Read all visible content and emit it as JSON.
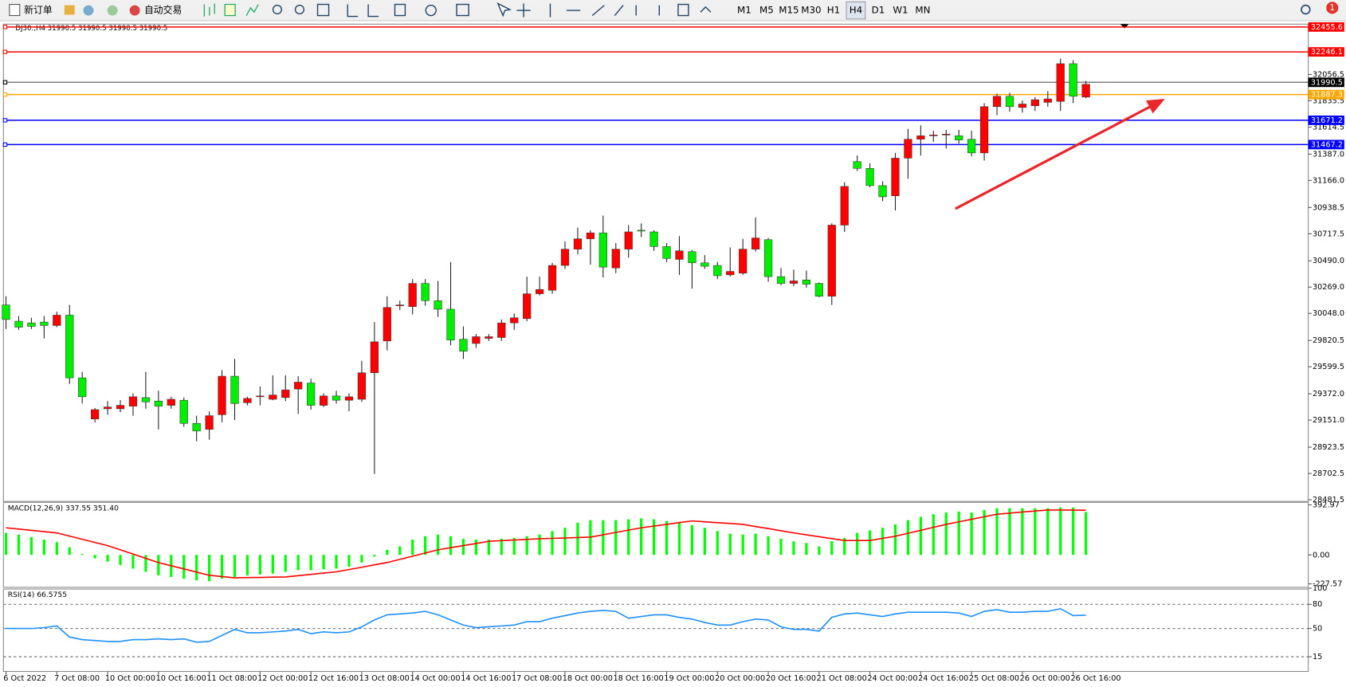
{
  "toolbar": {
    "new_order": "新订单",
    "auto_trading": "自动交易",
    "timeframes": [
      "M1",
      "M5",
      "M15",
      "M30",
      "H1",
      "H4",
      "D1",
      "W1",
      "MN"
    ],
    "badge": "1"
  },
  "chart_data": [
    {
      "type": "candlestick",
      "title": "DJ30.,H4  31990.5 31990.5 31990.5 31990.5",
      "up_color": "#ff0000",
      "down_color": "#00ee00",
      "categories": [
        "6 Oct 2022",
        null,
        null,
        null,
        "7 Oct 08:00",
        null,
        null,
        null,
        "10 Oct 00:00",
        null,
        null,
        null,
        "10 Oct 16:00",
        null,
        null,
        null,
        "11 Oct 08:00",
        null,
        null,
        null,
        "12 Oct 00:00",
        null,
        null,
        null,
        "12 Oct 16:00",
        null,
        null,
        null,
        "13 Oct 08:00",
        null,
        null,
        null,
        "14 Oct 00:00",
        null,
        null,
        null,
        "14 Oct 16:00",
        null,
        null,
        null,
        "17 Oct 08:00",
        null,
        null,
        null,
        "18 Oct 00:00",
        null,
        null,
        null,
        "18 Oct 16:00",
        null,
        null,
        null,
        "19 Oct 00:00",
        null,
        null,
        null,
        "20 Oct 00:00",
        null,
        null,
        null,
        "20 Oct 16:00",
        null,
        null,
        null,
        "21 Oct 08:00",
        null,
        null,
        null,
        "24 Oct 00:00",
        null,
        null,
        null,
        "24 Oct 16:00",
        null,
        null,
        null,
        "25 Oct 08:00",
        null,
        null,
        null,
        "26 Oct 00:00",
        null,
        null,
        null,
        "26 Oct 16:00",
        null
      ],
      "open": [
        30119,
        29982,
        29968,
        29975,
        29946,
        30033,
        29506,
        29160,
        29246,
        29246,
        29268,
        29340,
        29311,
        29275,
        29318,
        29123,
        29073,
        29196,
        29520,
        29297,
        29347,
        29326,
        29340,
        29412,
        29463,
        29275,
        29354,
        29318,
        29326,
        29549,
        29816,
        30112,
        30105,
        30300,
        30155,
        30083,
        29831,
        29795,
        29838,
        29845,
        29968,
        30004,
        30213,
        30242,
        30451,
        30588,
        30675,
        30725,
        30430,
        30588,
        30747,
        30733,
        30610,
        30502,
        30567,
        30473,
        30451,
        30372,
        30386,
        30588,
        30668,
        30357,
        30300,
        30329,
        30300,
        30192,
        30790,
        31324,
        31267,
        31122,
        31036,
        31353,
        31512,
        31541,
        31548,
        31541,
        31512,
        31397,
        31786,
        31873,
        31779,
        31793,
        31822,
        31830,
        32147,
        31866
      ],
      "high": [
        30192,
        30026,
        30011,
        30026,
        30062,
        30119,
        29557,
        29253,
        29311,
        29318,
        29376,
        29557,
        29398,
        29347,
        29340,
        29188,
        29224,
        29571,
        29665,
        29347,
        29434,
        29528,
        29528,
        29520,
        29499,
        29376,
        29398,
        29376,
        29650,
        29975,
        30192,
        30155,
        30336,
        30336,
        30321,
        30480,
        29939,
        29874,
        29874,
        29997,
        30047,
        30357,
        30357,
        30473,
        30653,
        30769,
        30747,
        30870,
        30639,
        30790,
        30805,
        30747,
        30639,
        30697,
        30581,
        30538,
        30480,
        30603,
        30675,
        30855,
        30682,
        30430,
        30415,
        30408,
        30307,
        30805,
        31151,
        31375,
        31310,
        31158,
        31397,
        31599,
        31628,
        31584,
        31591,
        31591,
        31584,
        31815,
        31895,
        31902,
        31837,
        31866,
        31916,
        32190,
        32176,
        32003
      ],
      "low": [
        29917,
        29910,
        29917,
        29838,
        29932,
        29455,
        29290,
        29131,
        29196,
        29217,
        29188,
        29246,
        29073,
        29246,
        29095,
        28972,
        28986,
        29131,
        29152,
        29275,
        29275,
        29318,
        29311,
        29203,
        29239,
        29261,
        29290,
        29224,
        29304,
        28698,
        29737,
        30076,
        30040,
        30112,
        30018,
        29780,
        29665,
        29758,
        29816,
        29816,
        29910,
        29982,
        30199,
        30213,
        30422,
        30545,
        30458,
        30350,
        30386,
        30516,
        30689,
        30574,
        30480,
        30372,
        30256,
        30422,
        30336,
        30357,
        30372,
        30567,
        30314,
        30285,
        30278,
        30264,
        30184,
        30119,
        30733,
        31245,
        31108,
        30992,
        30913,
        31180,
        31375,
        31490,
        31433,
        31476,
        31368,
        31332,
        31714,
        31743,
        31736,
        31750,
        31786,
        31750,
        31815,
        31858
      ],
      "close": [
        29997,
        29932,
        29939,
        29946,
        30033,
        29506,
        29347,
        29239,
        29261,
        29275,
        29347,
        29304,
        29268,
        29326,
        29123,
        29059,
        29188,
        29520,
        29290,
        29333,
        29354,
        29362,
        29405,
        29470,
        29275,
        29354,
        29318,
        29347,
        29549,
        29809,
        30098,
        30119,
        30300,
        30155,
        30083,
        29824,
        29730,
        29852,
        29852,
        29968,
        30011,
        30213,
        30249,
        30451,
        30588,
        30675,
        30725,
        30437,
        30588,
        30733,
        30740,
        30610,
        30509,
        30574,
        30473,
        30444,
        30365,
        30401,
        30588,
        30682,
        30357,
        30300,
        30321,
        30293,
        30192,
        30790,
        31115,
        31267,
        31122,
        31028,
        31353,
        31512,
        31541,
        31548,
        31555,
        31505,
        31397,
        31786,
        31873,
        31786,
        31808,
        31844,
        31851,
        32147,
        31873,
        31974
      ],
      "ylim": [
        28467,
        32465
      ],
      "yticks": [
        32056.5,
        31835.5,
        31614.5,
        {
          "value": 31387,
          "label": "31387.0"
        },
        {
          "value": 31166,
          "label": "31166.0"
        },
        30938.5,
        30717.5,
        {
          "value": 30490,
          "label": "30490.0"
        },
        {
          "value": 30269,
          "label": "30269.0"
        },
        {
          "value": 30048,
          "label": "30048.0"
        },
        29820.5,
        29599.5,
        {
          "value": 29372,
          "label": "29372.0"
        },
        {
          "value": 29151,
          "label": "29151.0"
        },
        28923.5,
        28702.5,
        28481.5
      ],
      "hlines": [
        {
          "value": 32455.6,
          "color": "#ff0000"
        },
        {
          "value": 32246.1,
          "color": "#ff0000"
        },
        {
          "value": 31990.5,
          "color": "#000000"
        },
        {
          "value": 31887.3,
          "color": "#ffa500"
        },
        {
          "value": 31671.2,
          "color": "#0000ff"
        },
        {
          "value": 31467.2,
          "color": "#0000ff"
        }
      ]
    },
    {
      "type": "combo",
      "title": "MACD(12,26,9) 337.55 351.40",
      "series": [
        {
          "type": "bar",
          "color": "#00ff00",
          "values": [
            173,
            160,
            140,
            120,
            100,
            60,
            7,
            -27,
            -53,
            -80,
            -107,
            -133,
            -160,
            -173,
            -187,
            -200,
            -207,
            -187,
            -173,
            -160,
            -153,
            -147,
            -133,
            -120,
            -120,
            -113,
            -107,
            -93,
            -60,
            -13,
            40,
            67,
            120,
            147,
            160,
            147,
            127,
            120,
            120,
            127,
            133,
            147,
            160,
            187,
            213,
            253,
            273,
            273,
            273,
            280,
            287,
            280,
            267,
            253,
            233,
            213,
            187,
            167,
            160,
            167,
            147,
            127,
            107,
            93,
            67,
            107,
            133,
            173,
            193,
            213,
            240,
            273,
            300,
            320,
            333,
            340,
            333,
            353,
            367,
            367,
            367,
            367,
            367,
            373,
            373,
            337.55
          ]
        },
        {
          "type": "line",
          "color": "#ff0000",
          "values": [
            213,
            203,
            193,
            183,
            173,
            148,
            123,
            98,
            73,
            40,
            7,
            -27,
            -60,
            -85,
            -110,
            -135,
            -160,
            -170,
            -180,
            -178,
            -177,
            -175,
            -173,
            -163,
            -153,
            -143,
            -133,
            -115,
            -97,
            -78,
            -60,
            -35,
            -10,
            15,
            40,
            57,
            73,
            90,
            107,
            112,
            117,
            122,
            127,
            130,
            133,
            137,
            140,
            158,
            177,
            195,
            213,
            227,
            240,
            254,
            267,
            260,
            253,
            247,
            240,
            223,
            207,
            190,
            173,
            158,
            143,
            128,
            113,
            113,
            113,
            130,
            147,
            170,
            193,
            217,
            240,
            260,
            280,
            300,
            320,
            328,
            337,
            345,
            353,
            353,
            352,
            351.4
          ]
        }
      ],
      "ylim": [
        -227.57,
        392.97
      ],
      "yticks": [
        392.97,
        {
          "value": 0,
          "label": "0.00"
        },
        -227.57
      ]
    },
    {
      "type": "line",
      "title": "RSI(14) 66.5755",
      "series": [
        {
          "color": "#1e90ff",
          "values": [
            50,
            50,
            50,
            51.1,
            53.2,
            39.4,
            36.2,
            35.1,
            34,
            34,
            36.2,
            36.2,
            37.2,
            36.2,
            37.2,
            33,
            34,
            41.5,
            48.9,
            44.7,
            44.7,
            45.8,
            46.8,
            48.9,
            43.6,
            45.8,
            44.7,
            45.8,
            52.1,
            60.6,
            67,
            68.1,
            69.2,
            71.3,
            67,
            60.6,
            54.3,
            51.1,
            52.1,
            53.2,
            54.3,
            58.5,
            58.5,
            62.8,
            66,
            69.2,
            71.3,
            72.4,
            71.3,
            62.8,
            64.9,
            67,
            67,
            63.8,
            61.7,
            57.5,
            54.3,
            54.3,
            58.5,
            61.7,
            60.6,
            52.1,
            48.9,
            48.9,
            46.8,
            63.8,
            68.1,
            69.2,
            67,
            64.9,
            68.1,
            70.2,
            70.2,
            70.2,
            70.2,
            69.2,
            64.9,
            71.3,
            73.4,
            70.2,
            70.2,
            71.3,
            71.3,
            74.5,
            66,
            66.5755
          ]
        }
      ],
      "ylim": [
        0,
        100
      ],
      "yticks": [
        100,
        80,
        50,
        15
      ],
      "levels": [
        80,
        50,
        15
      ]
    }
  ]
}
